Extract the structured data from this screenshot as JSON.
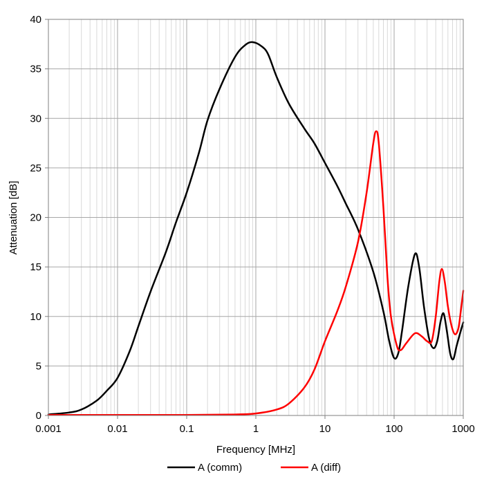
{
  "chart_data": {
    "type": "line",
    "title": "",
    "xlabel": "Frequency [MHz]",
    "ylabel": "Attenuation [dB]",
    "x_scale": "log",
    "xlim": [
      0.001,
      1000
    ],
    "ylim": [
      0,
      40
    ],
    "x_ticks": [
      "0.001",
      "0.01",
      "0.1",
      "1",
      "10",
      "100",
      "1000"
    ],
    "y_ticks": [
      "0",
      "5",
      "10",
      "15",
      "20",
      "25",
      "30",
      "35",
      "40"
    ],
    "grid": true,
    "legend_position": "bottom",
    "series": [
      {
        "name": "A (comm)",
        "color": "#000000",
        "points": [
          [
            0.001,
            0.1
          ],
          [
            0.002,
            0.3
          ],
          [
            0.003,
            0.6
          ],
          [
            0.005,
            1.5
          ],
          [
            0.007,
            2.5
          ],
          [
            0.01,
            3.8
          ],
          [
            0.015,
            6.5
          ],
          [
            0.02,
            9.0
          ],
          [
            0.03,
            12.5
          ],
          [
            0.05,
            16.5
          ],
          [
            0.07,
            19.5
          ],
          [
            0.1,
            22.5
          ],
          [
            0.15,
            26.5
          ],
          [
            0.2,
            29.8
          ],
          [
            0.3,
            33.0
          ],
          [
            0.5,
            36.2
          ],
          [
            0.7,
            37.4
          ],
          [
            0.9,
            37.7
          ],
          [
            1.2,
            37.3
          ],
          [
            1.5,
            36.5
          ],
          [
            2,
            34.2
          ],
          [
            3,
            31.5
          ],
          [
            5,
            29.0
          ],
          [
            7,
            27.5
          ],
          [
            10,
            25.5
          ],
          [
            15,
            23.2
          ],
          [
            20,
            21.4
          ],
          [
            30,
            18.8
          ],
          [
            50,
            14.5
          ],
          [
            70,
            10.5
          ],
          [
            85,
            7.5
          ],
          [
            100,
            5.8
          ],
          [
            115,
            6.3
          ],
          [
            130,
            8.5
          ],
          [
            160,
            13.0
          ],
          [
            200,
            16.3
          ],
          [
            230,
            15.0
          ],
          [
            270,
            11.0
          ],
          [
            320,
            7.8
          ],
          [
            370,
            6.8
          ],
          [
            420,
            7.5
          ],
          [
            470,
            9.5
          ],
          [
            520,
            10.3
          ],
          [
            580,
            8.5
          ],
          [
            650,
            6.2
          ],
          [
            720,
            5.7
          ],
          [
            800,
            7.0
          ],
          [
            900,
            8.3
          ],
          [
            1000,
            9.4
          ]
        ]
      },
      {
        "name": "A (diff)",
        "color": "#ff0000",
        "points": [
          [
            0.001,
            0.05
          ],
          [
            0.01,
            0.05
          ],
          [
            0.1,
            0.05
          ],
          [
            0.5,
            0.1
          ],
          [
            1,
            0.2
          ],
          [
            2,
            0.6
          ],
          [
            3,
            1.2
          ],
          [
            5,
            2.8
          ],
          [
            7,
            4.6
          ],
          [
            10,
            7.5
          ],
          [
            15,
            10.5
          ],
          [
            20,
            13.0
          ],
          [
            30,
            17.5
          ],
          [
            40,
            22.5
          ],
          [
            50,
            27.5
          ],
          [
            55,
            28.7
          ],
          [
            60,
            27.5
          ],
          [
            70,
            21.0
          ],
          [
            80,
            14.0
          ],
          [
            90,
            10.0
          ],
          [
            110,
            7.0
          ],
          [
            125,
            6.6
          ],
          [
            150,
            7.3
          ],
          [
            200,
            8.3
          ],
          [
            250,
            8.0
          ],
          [
            300,
            7.5
          ],
          [
            350,
            7.5
          ],
          [
            400,
            10.0
          ],
          [
            450,
            13.5
          ],
          [
            490,
            14.8
          ],
          [
            540,
            13.5
          ],
          [
            600,
            11.0
          ],
          [
            680,
            9.0
          ],
          [
            760,
            8.2
          ],
          [
            850,
            8.8
          ],
          [
            920,
            10.5
          ],
          [
            1000,
            12.6
          ]
        ]
      }
    ]
  }
}
